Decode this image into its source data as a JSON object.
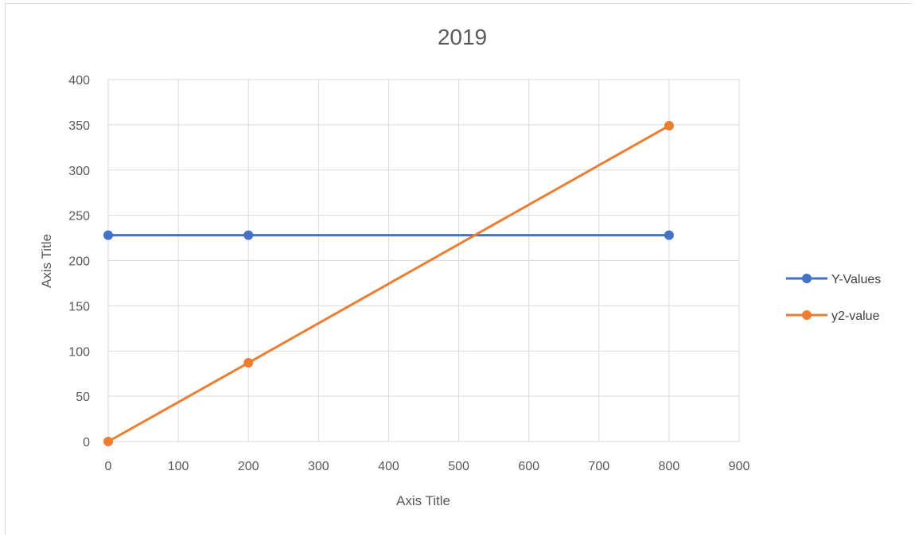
{
  "colors": {
    "series_blue": "#4472C4",
    "series_orange": "#ED7D31",
    "grid": "#d9d9d9",
    "text": "#595959"
  },
  "chart_data": {
    "type": "line",
    "title": "2019",
    "xlabel": "Axis Title",
    "ylabel": "Axis Title",
    "xlim": [
      0,
      900
    ],
    "ylim": [
      0,
      400
    ],
    "x_ticks": [
      "0",
      "100",
      "200",
      "300",
      "400",
      "500",
      "600",
      "700",
      "800",
      "900"
    ],
    "y_ticks": [
      "0",
      "50",
      "100",
      "150",
      "200",
      "250",
      "300",
      "350",
      "400"
    ],
    "grid": true,
    "legend_position": "right",
    "series": [
      {
        "name": "Y-Values",
        "color": "#4472C4",
        "points": [
          [
            0,
            228
          ],
          [
            200,
            228
          ],
          [
            800,
            228
          ]
        ]
      },
      {
        "name": "y2-value",
        "color": "#ED7D31",
        "points": [
          [
            0,
            0
          ],
          [
            200,
            87
          ],
          [
            800,
            349
          ]
        ]
      }
    ]
  }
}
